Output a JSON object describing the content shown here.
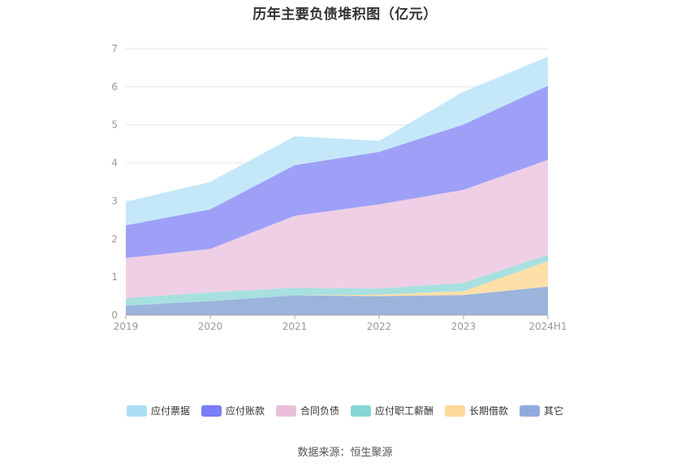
{
  "chart_data": {
    "type": "area",
    "stacked": true,
    "title": "历年主要负债堆积图（亿元）",
    "categories": [
      "2019",
      "2020",
      "2021",
      "2022",
      "2023",
      "2024H1"
    ],
    "ylim": [
      0,
      7
    ],
    "yticks": [
      0,
      1,
      2,
      3,
      4,
      5,
      6,
      7
    ],
    "grid": true,
    "legend_position": "bottom",
    "series": [
      {
        "name": "其它",
        "color": "#9bb4dc",
        "values": [
          0.25,
          0.37,
          0.52,
          0.5,
          0.53,
          0.75
        ]
      },
      {
        "name": "长期借款",
        "color": "#fde0a8",
        "values": [
          0.0,
          0.0,
          0.0,
          0.04,
          0.1,
          0.67
        ]
      },
      {
        "name": "应付职工薪酬",
        "color": "#a8e0e0",
        "values": [
          0.2,
          0.23,
          0.2,
          0.16,
          0.22,
          0.17
        ]
      },
      {
        "name": "合同负债",
        "color": "#efcfe5",
        "values": [
          1.05,
          1.14,
          1.89,
          2.21,
          2.44,
          2.49
        ]
      },
      {
        "name": "应付账款",
        "color": "#9ea0f7",
        "values": [
          0.86,
          1.04,
          1.33,
          1.38,
          1.72,
          1.95
        ]
      },
      {
        "name": "应付票据",
        "color": "#c4e8f9",
        "values": [
          0.62,
          0.72,
          0.76,
          0.29,
          0.86,
          0.76
        ]
      }
    ]
  },
  "legend": {
    "items": [
      {
        "label": "应付票据",
        "color": "#aadff7"
      },
      {
        "label": "应付账款",
        "color": "#7b7ef5"
      },
      {
        "label": "合同负债",
        "color": "#ebbfdc"
      },
      {
        "label": "应付职工薪酬",
        "color": "#86d6d6"
      },
      {
        "label": "长期借款",
        "color": "#fcd89a"
      },
      {
        "label": "其它",
        "color": "#8fabdc"
      }
    ]
  },
  "source": "数据来源：恒生聚源"
}
